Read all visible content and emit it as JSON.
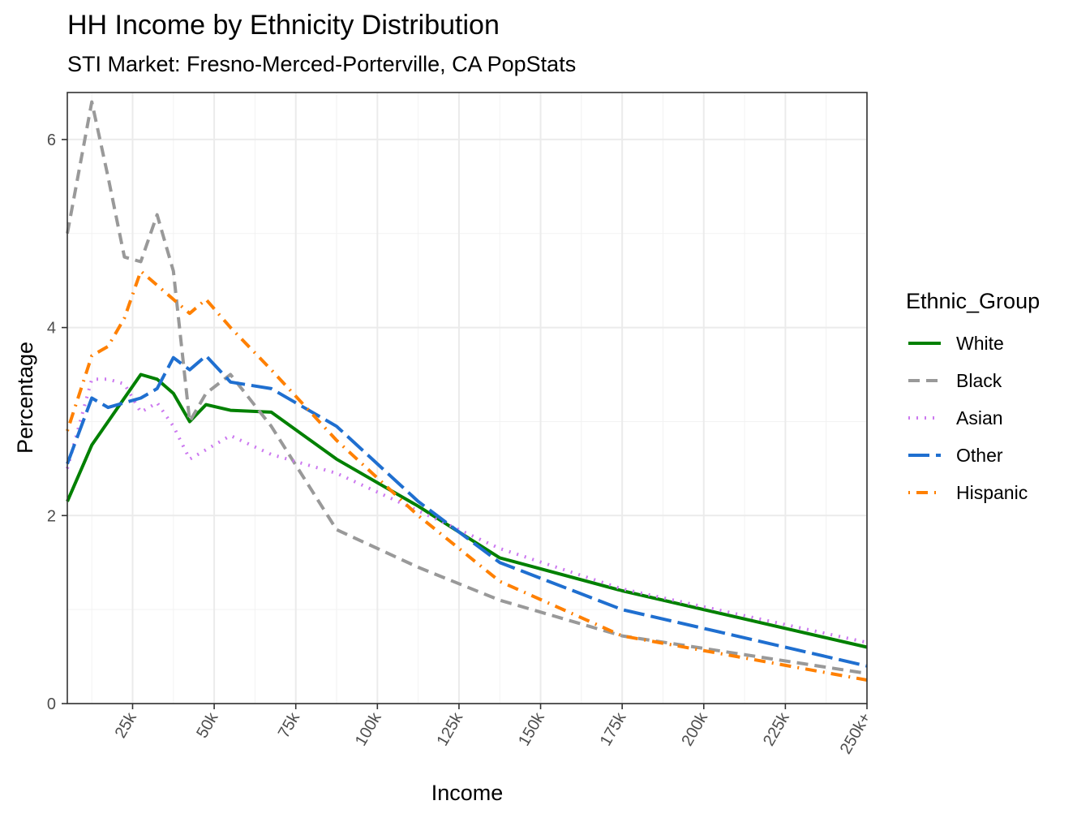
{
  "chart_data": {
    "type": "line",
    "title": "HH Income by Ethnicity Distribution",
    "subtitle": "STI Market: Fresno-Merced-Porterville, CA PopStats",
    "xlabel": "Income",
    "ylabel": "Percentage",
    "xlim": [
      5,
      250
    ],
    "ylim": [
      0,
      6.5
    ],
    "x_ticks": [
      25,
      50,
      75,
      100,
      125,
      150,
      175,
      200,
      225,
      250
    ],
    "x_tick_labels": [
      "25k",
      "50k",
      "75k",
      "100k",
      "125k",
      "150k",
      "175k",
      "200k",
      "225k",
      "250k+"
    ],
    "y_ticks": [
      0,
      2,
      4,
      6
    ],
    "y_tick_labels": [
      "0",
      "2",
      "4",
      "6"
    ],
    "grid": true,
    "legend_title": "Ethnic_Group",
    "legend_position": "right",
    "x": [
      5,
      12.5,
      17.5,
      22.5,
      27.5,
      32.5,
      37.5,
      42.5,
      47.5,
      55,
      67.5,
      87.5,
      112.5,
      137.5,
      175,
      250
    ],
    "series": [
      {
        "name": "White",
        "color": "#008000",
        "dash": "solid",
        "values": [
          2.15,
          2.75,
          3.0,
          3.25,
          3.5,
          3.45,
          3.3,
          3.0,
          3.18,
          3.12,
          3.1,
          2.6,
          2.1,
          1.55,
          1.2,
          0.6
        ]
      },
      {
        "name": "Black",
        "color": "#999999",
        "dash": "dashed",
        "values": [
          5.0,
          6.4,
          5.6,
          4.75,
          4.7,
          5.2,
          4.6,
          3.0,
          3.3,
          3.5,
          2.95,
          1.85,
          1.45,
          1.1,
          0.72,
          0.32
        ]
      },
      {
        "name": "Asian",
        "color": "#cc79f0",
        "dash": "dotted",
        "values": [
          2.5,
          3.45,
          3.45,
          3.4,
          3.1,
          3.2,
          2.95,
          2.6,
          2.7,
          2.85,
          2.65,
          2.45,
          2.05,
          1.65,
          1.22,
          0.65
        ]
      },
      {
        "name": "Other",
        "color": "#1f6fd0",
        "dash": "longdash",
        "values": [
          2.55,
          3.25,
          3.15,
          3.2,
          3.25,
          3.35,
          3.68,
          3.55,
          3.7,
          3.42,
          3.35,
          2.95,
          2.15,
          1.5,
          1.0,
          0.4
        ]
      },
      {
        "name": "Hispanic",
        "color": "#ff8000",
        "dash": "dotdash",
        "values": [
          2.9,
          3.7,
          3.8,
          4.1,
          4.6,
          4.45,
          4.3,
          4.15,
          4.3,
          4.0,
          3.55,
          2.8,
          2.0,
          1.3,
          0.72,
          0.25
        ]
      }
    ]
  }
}
